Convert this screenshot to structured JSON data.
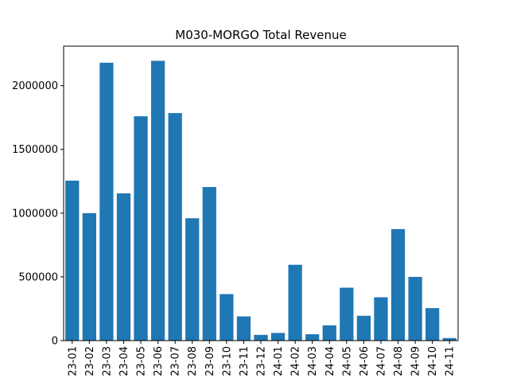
{
  "chart_data": {
    "type": "bar",
    "title": "M030-MORGO Total Revenue",
    "xlabel": "",
    "ylabel": "",
    "categories": [
      "23-01",
      "23-02",
      "23-03",
      "23-04",
      "23-05",
      "23-06",
      "23-07",
      "23-08",
      "23-09",
      "23-10",
      "23-11",
      "23-12",
      "24-01",
      "24-02",
      "24-03",
      "24-04",
      "24-05",
      "24-06",
      "24-07",
      "24-08",
      "24-09",
      "24-10",
      "24-11"
    ],
    "values": [
      1255000,
      1000000,
      2180000,
      1155000,
      1760000,
      2195000,
      1785000,
      960000,
      1205000,
      365000,
      190000,
      45000,
      60000,
      595000,
      50000,
      120000,
      415000,
      195000,
      340000,
      875000,
      500000,
      255000,
      20000
    ],
    "ylim": [
      0,
      2310000
    ],
    "yticks": [
      0,
      500000,
      1000000,
      1500000,
      2000000
    ],
    "ytick_labels": [
      "0",
      "500000",
      "1000000",
      "1500000",
      "2000000"
    ],
    "bar_color": "#1f77b4",
    "grid": false
  }
}
